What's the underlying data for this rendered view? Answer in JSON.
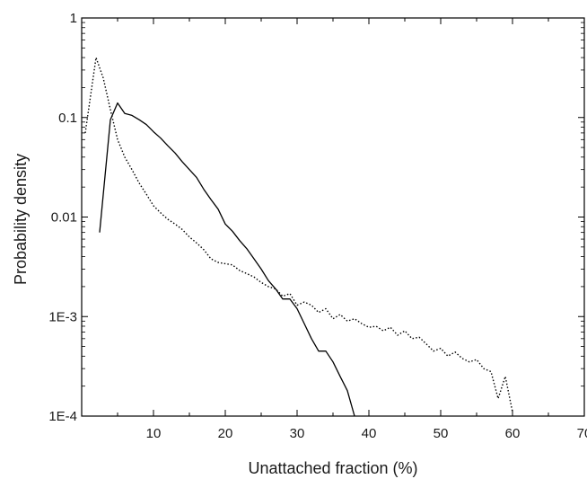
{
  "chart_data": {
    "type": "line",
    "title": "",
    "xlabel": "Unattached fraction (%)",
    "ylabel": "Probability density",
    "xlim": [
      0,
      70
    ],
    "ylim": [
      0.0001,
      1
    ],
    "yscale": "log",
    "grid": false,
    "legend": "none",
    "x_ticks": [
      10,
      20,
      30,
      40,
      50,
      60,
      70
    ],
    "x_tick_labels": [
      "10",
      "20",
      "30",
      "40",
      "50",
      "60",
      "70"
    ],
    "y_ticks": [
      0.0001,
      0.001,
      0.01,
      0.1,
      1
    ],
    "y_tick_labels": [
      "1E-4",
      "1E-3",
      "0.01",
      "0.1",
      "1"
    ],
    "series": [
      {
        "line_style": "solid",
        "color": "#000000",
        "x": [
          2.5,
          4,
          5,
          6,
          7,
          8,
          9,
          10,
          11,
          12,
          13,
          14,
          15,
          16,
          17,
          18,
          19,
          20,
          21,
          22,
          23,
          24,
          25,
          26,
          27,
          28,
          29,
          30,
          31,
          32,
          33,
          34,
          35,
          36,
          37,
          38
        ],
        "y": [
          0.007,
          0.095,
          0.14,
          0.11,
          0.105,
          0.095,
          0.085,
          0.072,
          0.062,
          0.052,
          0.044,
          0.036,
          0.03,
          0.025,
          0.019,
          0.015,
          0.012,
          0.0085,
          0.0072,
          0.0058,
          0.0048,
          0.0038,
          0.003,
          0.0023,
          0.0019,
          0.0015,
          0.0015,
          0.0012,
          0.00085,
          0.0006,
          0.00045,
          0.00045,
          0.00035,
          0.00025,
          0.00018,
          0.0001
        ]
      },
      {
        "line_style": "dotted",
        "color": "#000000",
        "x": [
          0.5,
          2,
          3,
          4,
          5,
          6,
          7,
          8,
          9,
          10,
          11,
          12,
          13,
          14,
          15,
          16,
          17,
          18,
          19,
          20,
          21,
          22,
          23,
          24,
          25,
          26,
          27,
          28,
          29,
          30,
          31,
          32,
          33,
          34,
          35,
          36,
          37,
          38,
          39,
          40,
          41,
          42,
          43,
          44,
          45,
          46,
          47,
          48,
          49,
          50,
          51,
          52,
          53,
          54,
          55,
          56,
          57,
          58,
          59,
          60
        ],
        "y": [
          0.07,
          0.4,
          0.25,
          0.12,
          0.06,
          0.04,
          0.03,
          0.022,
          0.017,
          0.013,
          0.011,
          0.0095,
          0.0085,
          0.0075,
          0.0063,
          0.0055,
          0.0047,
          0.0038,
          0.0035,
          0.0034,
          0.0033,
          0.0029,
          0.0027,
          0.0025,
          0.0022,
          0.002,
          0.0019,
          0.0016,
          0.0017,
          0.0013,
          0.0014,
          0.0013,
          0.0011,
          0.0012,
          0.00095,
          0.00105,
          0.0009,
          0.00095,
          0.00085,
          0.00078,
          0.0008,
          0.00072,
          0.00078,
          0.00065,
          0.00072,
          0.0006,
          0.00062,
          0.00053,
          0.00045,
          0.00048,
          0.0004,
          0.00044,
          0.00038,
          0.00035,
          0.00037,
          0.0003,
          0.00028,
          0.00015,
          0.00025,
          0.00011
        ]
      }
    ]
  }
}
